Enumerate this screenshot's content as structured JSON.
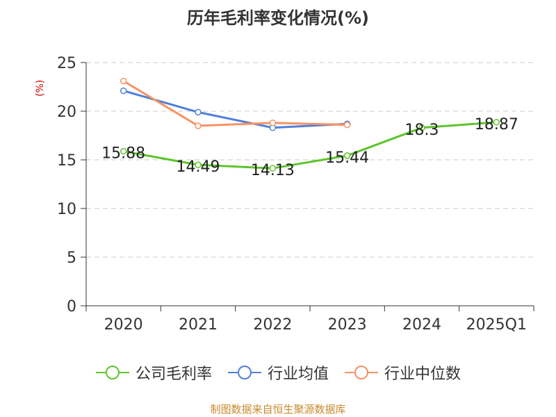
{
  "chart_data": {
    "type": "line",
    "title": "历年毛利率变化情况(%)",
    "ylabel": "(%)",
    "categories": [
      "2020",
      "2021",
      "2022",
      "2023",
      "2024",
      "2025Q1"
    ],
    "ylim": [
      0,
      25
    ],
    "yticks": [
      0,
      5,
      10,
      15,
      20,
      25
    ],
    "grid": true,
    "legend_position": "bottom",
    "series": [
      {
        "name": "公司毛利率",
        "color": "#5dc42a",
        "values": [
          15.88,
          14.49,
          14.13,
          15.44,
          18.3,
          18.87
        ],
        "labels": [
          "15.88",
          "14.49",
          "14.13",
          "15.44",
          "18.3",
          "18.87"
        ]
      },
      {
        "name": "行业均值",
        "color": "#4f7fdc",
        "values": [
          22.1,
          19.9,
          18.3,
          18.7,
          null,
          null
        ]
      },
      {
        "name": "行业中位数",
        "color": "#f59263",
        "values": [
          23.1,
          18.5,
          18.8,
          18.6,
          null,
          null
        ]
      }
    ]
  },
  "source": "制图数据来自恒生聚源数据库"
}
